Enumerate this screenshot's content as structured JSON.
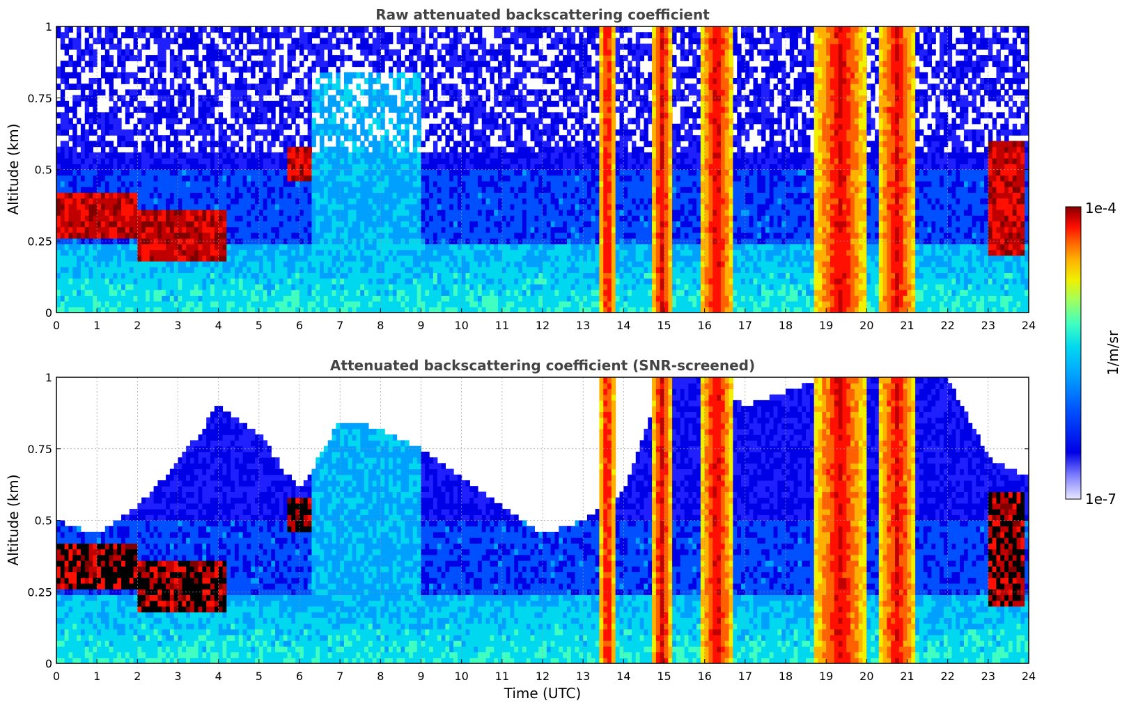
{
  "figure": {
    "xlabel": "Time (UTC)",
    "colorbar": {
      "label": "1/m/sr",
      "min_label": "1e-7",
      "max_label": "1e-4",
      "scale": "log",
      "colormap": "jet",
      "colors": [
        "#e8e8ff",
        "#c8c8ff",
        "#8080ff",
        "#2020ff",
        "#0000e6",
        "#0050ff",
        "#00a0ff",
        "#00d8f0",
        "#40ffc0",
        "#a0ff60",
        "#f0f000",
        "#ffb000",
        "#ff6000",
        "#ff1000",
        "#c00000",
        "#800000"
      ]
    }
  },
  "chart_data": [
    {
      "type": "heatmap",
      "title": "Raw attenuated backscattering coefficient",
      "ylabel": "Altitude (km)",
      "xlabel": "",
      "xlim": [
        0,
        24
      ],
      "ylim": [
        0,
        1
      ],
      "xticks": [
        "0",
        "1",
        "2",
        "3",
        "4",
        "5",
        "6",
        "7",
        "8",
        "9",
        "10",
        "11",
        "12",
        "13",
        "14",
        "15",
        "16",
        "17",
        "18",
        "19",
        "20",
        "21",
        "22",
        "23",
        "24"
      ],
      "yticks": [
        "0",
        "0.25",
        "0.5",
        "0.75",
        "1"
      ],
      "grid": true,
      "features": {
        "cloud_layer": [
          {
            "t_start": 0.0,
            "t_end": 2.0,
            "alt_low": 0.27,
            "alt_high": 0.42
          },
          {
            "t_start": 2.0,
            "t_end": 4.2,
            "alt_low": 0.18,
            "alt_high": 0.35
          },
          {
            "t_start": 5.7,
            "t_end": 6.3,
            "alt_low": 0.47,
            "alt_high": 0.58
          },
          {
            "t_start": 23.0,
            "t_end": 23.9,
            "alt_low": 0.2,
            "alt_high": 0.6
          }
        ],
        "precipitation_columns": [
          {
            "t_start": 13.4,
            "t_end": 13.8
          },
          {
            "t_start": 14.7,
            "t_end": 15.2
          },
          {
            "t_start": 15.9,
            "t_end": 16.7
          },
          {
            "t_start": 18.7,
            "t_end": 20.0
          },
          {
            "t_start": 20.3,
            "t_end": 21.2
          }
        ],
        "noise_above_boundary_layer": true
      }
    },
    {
      "type": "heatmap",
      "title": "Attenuated backscattering coefficient (SNR-screened)",
      "ylabel": "Altitude (km)",
      "xlabel": "Time (UTC)",
      "xlim": [
        0,
        24
      ],
      "ylim": [
        0,
        1
      ],
      "xticks": [
        "0",
        "1",
        "2",
        "3",
        "4",
        "5",
        "6",
        "7",
        "8",
        "9",
        "10",
        "11",
        "12",
        "13",
        "14",
        "15",
        "16",
        "17",
        "18",
        "19",
        "20",
        "21",
        "22",
        "23",
        "24"
      ],
      "yticks": [
        "0",
        "0.25",
        "0.5",
        "0.75",
        "1"
      ],
      "grid": true,
      "features": {
        "cloud_layer": [
          {
            "t_start": 0.0,
            "t_end": 2.0,
            "alt_low": 0.27,
            "alt_high": 0.42
          },
          {
            "t_start": 2.0,
            "t_end": 4.2,
            "alt_low": 0.18,
            "alt_high": 0.35
          },
          {
            "t_start": 5.7,
            "t_end": 6.3,
            "alt_low": 0.47,
            "alt_high": 0.58
          },
          {
            "t_start": 23.0,
            "t_end": 23.9,
            "alt_low": 0.2,
            "alt_high": 0.6
          }
        ],
        "precipitation_columns": [
          {
            "t_start": 13.4,
            "t_end": 13.8
          },
          {
            "t_start": 14.7,
            "t_end": 15.2
          },
          {
            "t_start": 15.9,
            "t_end": 16.7
          },
          {
            "t_start": 18.7,
            "t_end": 20.0
          },
          {
            "t_start": 20.3,
            "t_end": 21.2
          }
        ],
        "screened_top": [
          {
            "t": 0,
            "alt": 0.5
          },
          {
            "t": 1,
            "alt": 0.45
          },
          {
            "t": 2,
            "alt": 0.55
          },
          {
            "t": 3,
            "alt": 0.7
          },
          {
            "t": 4,
            "alt": 0.9
          },
          {
            "t": 5,
            "alt": 0.8
          },
          {
            "t": 6,
            "alt": 0.6
          },
          {
            "t": 7,
            "alt": 0.85
          },
          {
            "t": 8,
            "alt": 0.82
          },
          {
            "t": 9,
            "alt": 0.75
          },
          {
            "t": 10,
            "alt": 0.65
          },
          {
            "t": 11,
            "alt": 0.55
          },
          {
            "t": 12,
            "alt": 0.45
          },
          {
            "t": 13,
            "alt": 0.5
          },
          {
            "t": 14,
            "alt": 0.6
          },
          {
            "t": 15,
            "alt": 1.0
          },
          {
            "t": 16,
            "alt": 1.0
          },
          {
            "t": 17,
            "alt": 0.9
          },
          {
            "t": 18,
            "alt": 0.95
          },
          {
            "t": 19,
            "alt": 1.0
          },
          {
            "t": 20,
            "alt": 1.0
          },
          {
            "t": 21,
            "alt": 1.0
          },
          {
            "t": 22,
            "alt": 1.0
          },
          {
            "t": 23,
            "alt": 0.72
          },
          {
            "t": 24,
            "alt": 0.65
          }
        ]
      }
    }
  ]
}
